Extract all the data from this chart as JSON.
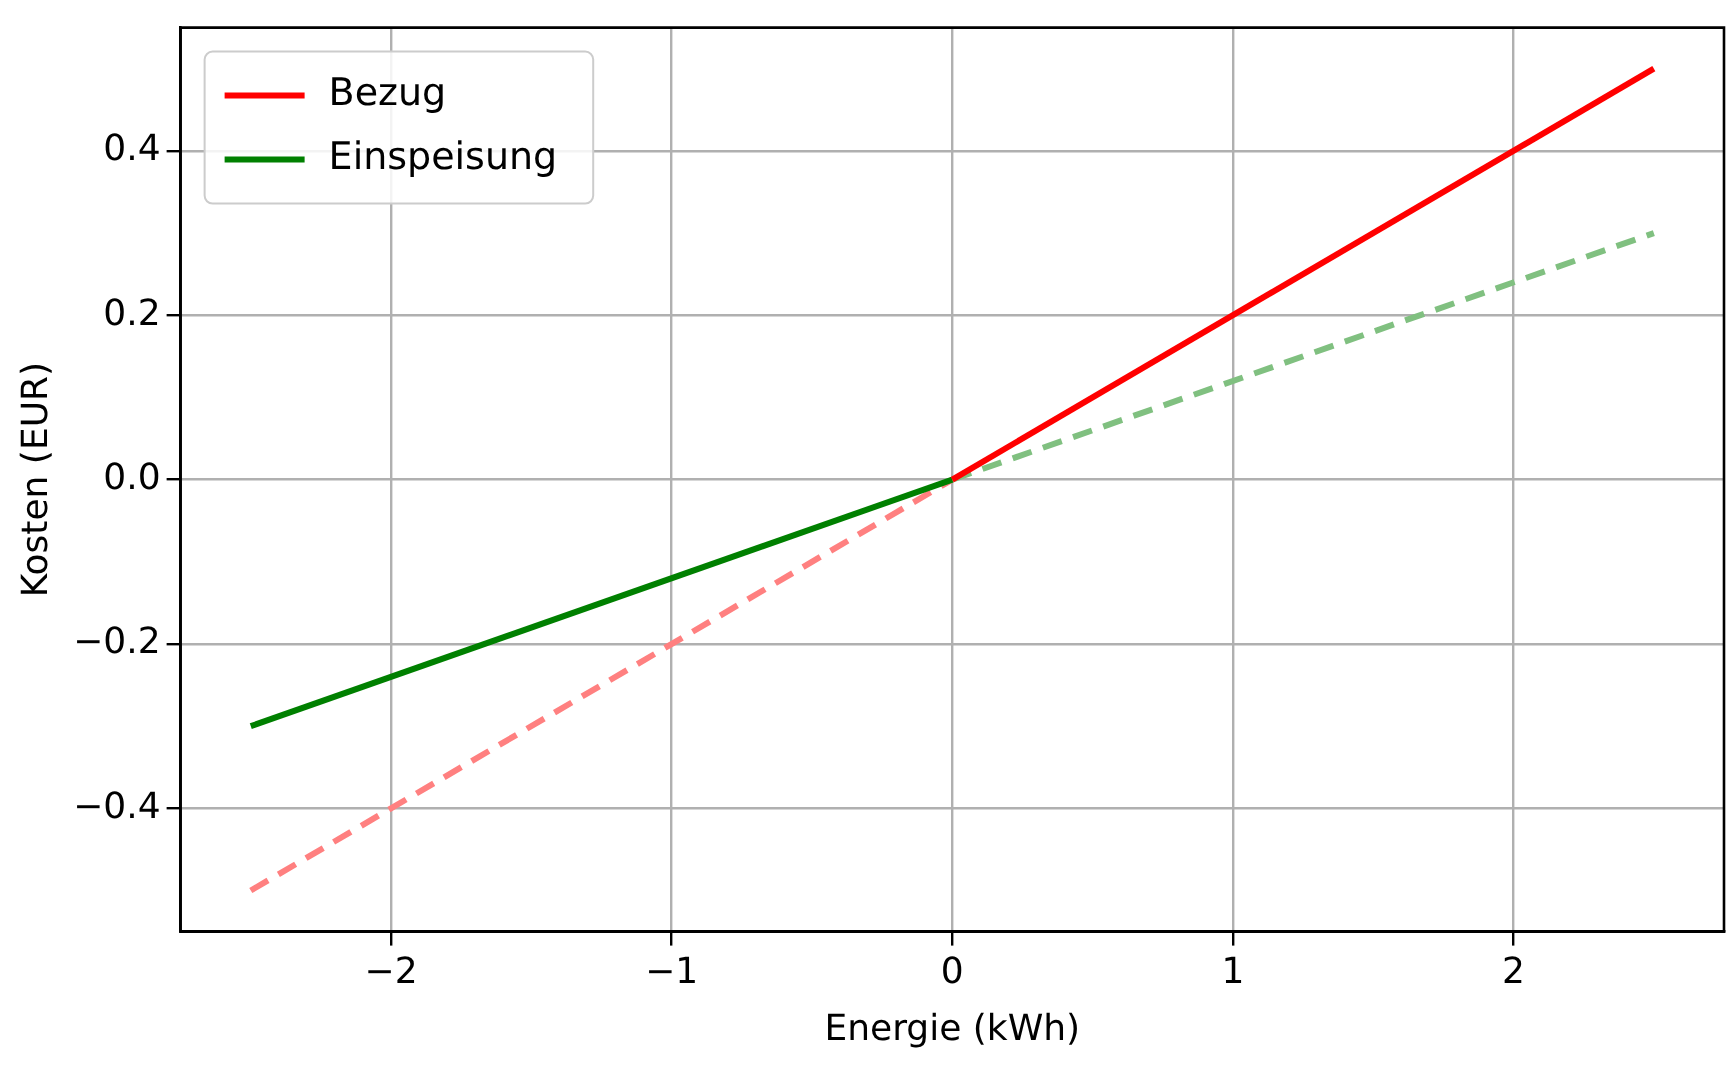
{
  "chart_data": {
    "type": "line",
    "xlabel": "Energie (kWh)",
    "ylabel": "Kosten (EUR)",
    "xlim": [
      -2.75,
      2.75
    ],
    "ylim": [
      -0.55,
      0.55
    ],
    "xticks": [
      {
        "value": -2,
        "label": "−2"
      },
      {
        "value": -1,
        "label": "−1"
      },
      0,
      1,
      2
    ],
    "yticks": [
      {
        "value": -0.4,
        "label": "−0.4"
      },
      {
        "value": -0.2,
        "label": "−0.2"
      },
      {
        "value": 0,
        "label": "0.0"
      },
      {
        "value": 0.2,
        "label": "0.2"
      },
      {
        "value": 0.4,
        "label": "0.4"
      }
    ],
    "grid": true,
    "legend": "top left",
    "marker": "none",
    "series": [
      {
        "name": "Bezug",
        "color": "#ff0000",
        "x": [
          0,
          2.5
        ],
        "values": [
          0,
          0.5
        ],
        "line_style": "solid"
      },
      {
        "name": "Einspeisung",
        "color": "#008000",
        "x": [
          -2.5,
          0
        ],
        "values": [
          -0.3,
          0
        ],
        "line_style": "solid"
      },
      {
        "color": "#ff8080",
        "x": [
          -2.5,
          0
        ],
        "values": [
          -0.5,
          0
        ],
        "line_style": "dashed"
      },
      {
        "color": "#80c080",
        "x": [
          0,
          2.5
        ],
        "values": [
          0,
          0.3
        ],
        "line_style": "dashed"
      }
    ]
  }
}
